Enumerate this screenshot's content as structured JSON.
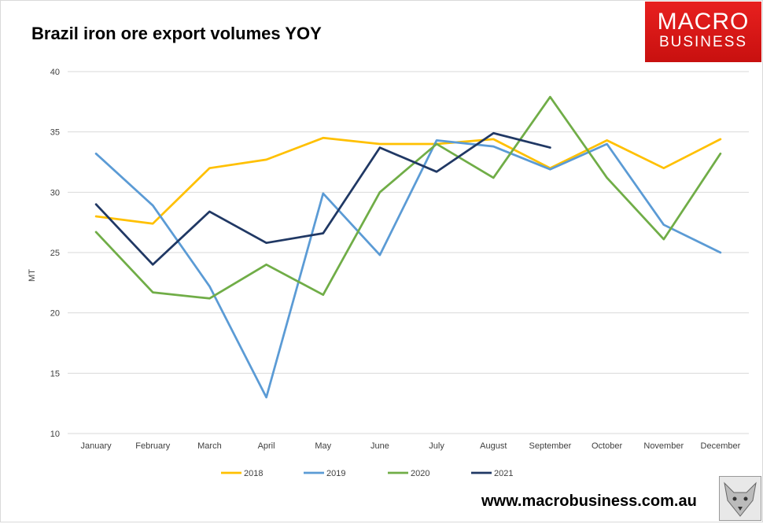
{
  "header": {
    "title": "Brazil iron ore export volumes YOY",
    "logo_line1": "MACRO",
    "logo_line2": "BUSINESS"
  },
  "footer": {
    "website": "www.macrobusiness.com.au"
  },
  "colors": {
    "2018": "#FFC000",
    "2019": "#5B9BD5",
    "2020": "#70AD47",
    "2021": "#203864",
    "logo_bg": "#E31E1E"
  },
  "chart_data": {
    "type": "line",
    "title": "Brazil iron ore export volumes YOY",
    "xlabel": "",
    "ylabel": "MT",
    "ylim": [
      10,
      40
    ],
    "yticks": [
      10,
      15,
      20,
      25,
      30,
      35,
      40
    ],
    "grid": true,
    "legend_position": "bottom",
    "categories": [
      "January",
      "February",
      "March",
      "April",
      "May",
      "June",
      "July",
      "August",
      "September",
      "October",
      "November",
      "December"
    ],
    "series": [
      {
        "name": "2018",
        "color": "#FFC000",
        "values": [
          28.0,
          27.4,
          32.0,
          32.7,
          34.5,
          34.0,
          34.0,
          34.4,
          32.0,
          34.3,
          32.0,
          34.4
        ]
      },
      {
        "name": "2019",
        "color": "#5B9BD5",
        "values": [
          33.2,
          28.9,
          22.2,
          13.0,
          29.9,
          24.8,
          34.3,
          33.8,
          31.9,
          34.0,
          27.3,
          25.0
        ]
      },
      {
        "name": "2020",
        "color": "#70AD47",
        "values": [
          26.7,
          21.7,
          21.2,
          24.0,
          21.5,
          30.0,
          34.0,
          31.2,
          37.9,
          31.2,
          26.1,
          33.2
        ]
      },
      {
        "name": "2021",
        "color": "#203864",
        "values": [
          29.0,
          24.0,
          28.4,
          25.8,
          26.6,
          33.7,
          31.7,
          34.9,
          33.7,
          null,
          null,
          null
        ]
      }
    ]
  }
}
